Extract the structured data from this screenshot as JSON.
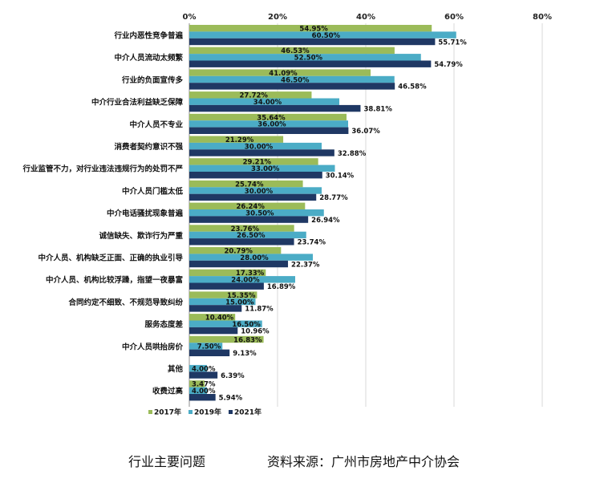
{
  "chart_data": {
    "type": "bar",
    "orientation": "horizontal",
    "title": "",
    "xlabel": "",
    "ylabel": "",
    "xlim": [
      0,
      80
    ],
    "x_ticks": [
      "0%",
      "20%",
      "40%",
      "60%",
      "80%"
    ],
    "x_axis_position": "top",
    "grid": true,
    "legend_position": "bottom-left",
    "value_format": "percent, 2 decimals",
    "categories": [
      "行业内恶性竞争普遍",
      "中介人员流动太频繁",
      "行业的负面宣传多",
      "中介行业合法利益缺乏保障",
      "中介人员不专业",
      "消费者契约意识不强",
      "行业监管不力，对行业违法违规行为的处罚不严",
      "中介人员门槛太低",
      "中介电话骚扰现象普遍",
      "诚信缺失、欺诈行为严重",
      "中介人员、机构缺乏正面、正确的执业引导",
      "中介人员、机构比较浮躁，指望一夜暴富",
      "合同约定不细致、不规范导致纠纷",
      "服务态度差",
      "中介人员哄抬房价",
      "其他",
      "收费过高"
    ],
    "series": [
      {
        "name": "2017年",
        "color": "#9bbb59",
        "values": [
          54.95,
          46.53,
          41.09,
          27.72,
          35.64,
          21.29,
          29.21,
          25.74,
          26.24,
          23.76,
          20.79,
          17.33,
          15.35,
          10.4,
          16.83,
          null,
          3.47
        ]
      },
      {
        "name": "2019年",
        "color": "#4bacc6",
        "values": [
          60.5,
          52.5,
          46.5,
          34.0,
          36.0,
          30.0,
          33.0,
          30.0,
          30.5,
          26.5,
          28.0,
          24.0,
          15.0,
          16.5,
          7.5,
          4.0,
          4.0
        ]
      },
      {
        "name": "2021年",
        "color": "#1f3864",
        "values": [
          55.71,
          54.79,
          46.58,
          38.81,
          36.07,
          32.88,
          30.14,
          28.77,
          26.94,
          23.74,
          22.37,
          16.89,
          11.87,
          10.96,
          9.13,
          6.39,
          5.94
        ]
      }
    ]
  },
  "captions": {
    "left": "行业主要问题",
    "right": "资料来源：广州市房地产中介协会"
  }
}
